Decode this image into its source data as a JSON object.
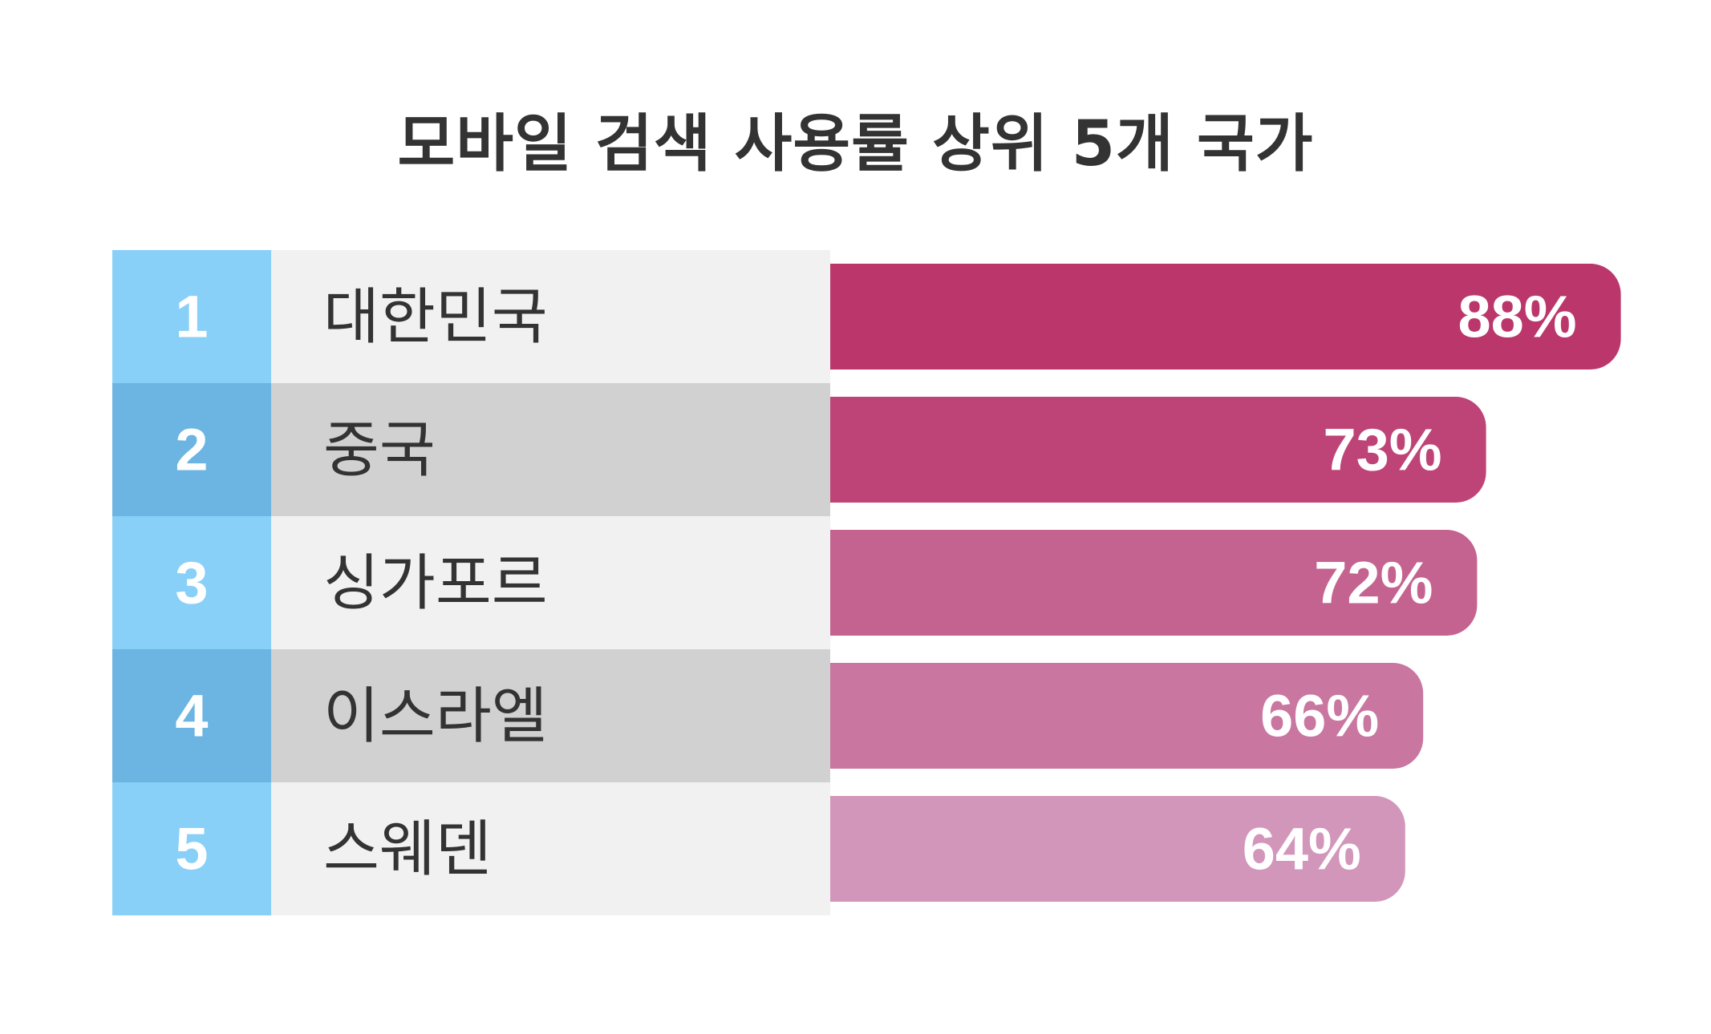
{
  "chart_data": {
    "type": "bar",
    "title": "모바일 검색 사용률 상위 5개 국가",
    "categories": [
      "대한민국",
      "중국",
      "싱가포르",
      "이스라엘",
      "스웨덴"
    ],
    "ranks": [
      "1",
      "2",
      "3",
      "4",
      "5"
    ],
    "values": [
      88,
      73,
      72,
      66,
      64
    ],
    "value_labels": [
      "88%",
      "73%",
      "72%",
      "66%",
      "64%"
    ],
    "unit": "%",
    "orientation": "horizontal",
    "grid": false,
    "legend": "none",
    "colors": {
      "bars": [
        "#bb376b",
        "#be4478",
        "#c56390",
        "#c976a0",
        "#d396bb"
      ],
      "rank_cells": [
        "#88d0f8",
        "#6cb4e2",
        "#88d0f8",
        "#6cb4e2",
        "#88d0f8"
      ],
      "name_cells": [
        "#f0f1f0",
        "#d0d1d0",
        "#f0f1f0",
        "#d0d1d0",
        "#f0f1f0"
      ],
      "title": "#333333",
      "label": "#333333"
    }
  }
}
